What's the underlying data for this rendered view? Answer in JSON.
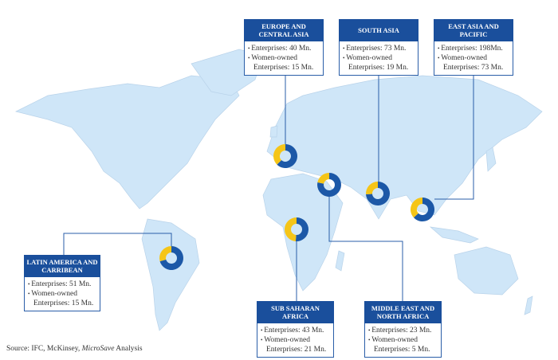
{
  "colors": {
    "header": "#1a4f9c",
    "donut_total": "#1c58a7",
    "donut_women": "#f5c518",
    "land": "#cfe6f8"
  },
  "regions": [
    {
      "id": "europe",
      "title": "Europe and Central Asia",
      "enterprises": "Enterprises: 40 Mn.",
      "women": "Women-owned Enterprises: 15 Mn.",
      "total_mn": 40,
      "women_mn": 15
    },
    {
      "id": "south-asia",
      "title": "South Asia",
      "enterprises": "Enterprises: 73 Mn.",
      "women": "Women-owned Enterprises: 19 Mn.",
      "total_mn": 73,
      "women_mn": 19
    },
    {
      "id": "east-asia",
      "title": "East Asia and Pacific",
      "enterprises": "Enterprises: 198Mn.",
      "women": "Women-owned Enterprises: 73 Mn.",
      "total_mn": 198,
      "women_mn": 73
    },
    {
      "id": "latam",
      "title": "Latin America and Carribean",
      "enterprises": "Enterprises: 51 Mn.",
      "women": "Women-owned Enterprises: 15 Mn.",
      "total_mn": 51,
      "women_mn": 15
    },
    {
      "id": "ssa",
      "title": "Sub Saharan Africa",
      "enterprises": "Enterprises: 43 Mn.",
      "women": "Women-owned Enterprises: 21 Mn.",
      "total_mn": 43,
      "women_mn": 21
    },
    {
      "id": "mena",
      "title": "Middle East and North Africa",
      "enterprises": "Enterprises: 23 Mn.",
      "women": "Women-owned Enterprises: 5 Mn.",
      "total_mn": 23,
      "women_mn": 5
    }
  ],
  "source": {
    "prefix": "Source: IFC, McKinsey, ",
    "italic": "MicroSave",
    "suffix": " Analysis"
  }
}
